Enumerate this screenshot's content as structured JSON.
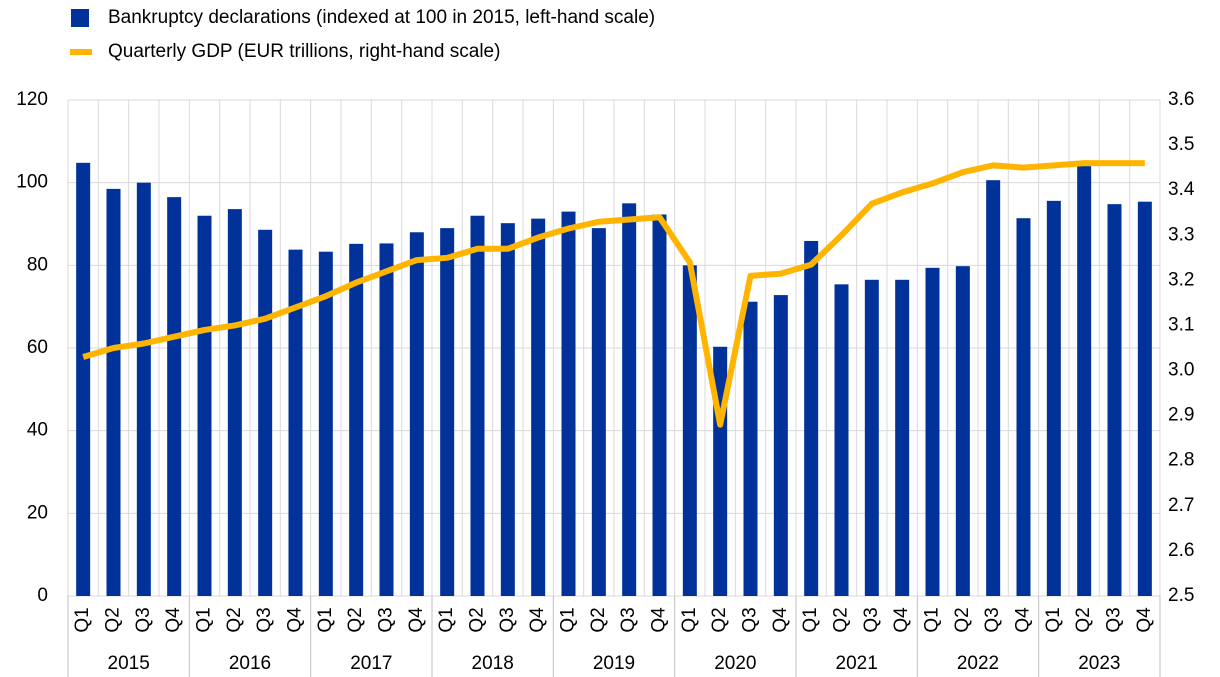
{
  "chart_data": {
    "type": "bar_line",
    "categories": [
      "Q1",
      "Q2",
      "Q3",
      "Q4",
      "Q1",
      "Q2",
      "Q3",
      "Q4",
      "Q1",
      "Q2",
      "Q3",
      "Q4",
      "Q1",
      "Q2",
      "Q3",
      "Q4",
      "Q1",
      "Q2",
      "Q3",
      "Q4",
      "Q1",
      "Q2",
      "Q3",
      "Q4",
      "Q1",
      "Q2",
      "Q3",
      "Q4",
      "Q1",
      "Q2",
      "Q3",
      "Q4",
      "Q1",
      "Q2",
      "Q3",
      "Q4"
    ],
    "years": [
      "2015",
      "2016",
      "2017",
      "2018",
      "2019",
      "2020",
      "2021",
      "2022",
      "2023"
    ],
    "series": [
      {
        "name": "Bankruptcy declarations (indexed at 100 in 2015, left-hand scale)",
        "type": "bar",
        "color": "#003299",
        "values": [
          104.8,
          98.5,
          100,
          96.5,
          92,
          93.6,
          88.6,
          83.8,
          83.3,
          85.2,
          85.3,
          88,
          89,
          92,
          90.2,
          91.3,
          93,
          89,
          95,
          92.3,
          80,
          60.3,
          71.2,
          72.8,
          85.9,
          75.4,
          76.5,
          76.5,
          79.4,
          79.8,
          100.6,
          91.4,
          95.6,
          104,
          94.8,
          95.4
        ]
      },
      {
        "name": "Quarterly GDP (EUR trillions, right-hand scale)",
        "type": "line",
        "axis": "y2",
        "color": "#ffb400",
        "values": [
          3.03,
          3.05,
          3.06,
          3.075,
          3.09,
          3.1,
          3.115,
          3.14,
          3.165,
          3.195,
          3.22,
          3.245,
          3.25,
          3.27,
          3.27,
          3.295,
          3.315,
          3.33,
          3.335,
          3.34,
          3.24,
          2.88,
          3.21,
          3.215,
          3.235,
          3.3,
          3.37,
          3.395,
          3.415,
          3.44,
          3.455,
          3.45,
          3.455,
          3.46,
          3.46,
          3.46
        ]
      }
    ],
    "ylim": [
      0,
      120
    ],
    "yticks": [
      0,
      20,
      40,
      60,
      80,
      100,
      120
    ],
    "y2lim": [
      2.5,
      3.6
    ],
    "y2ticks": [
      2.5,
      2.6,
      2.7,
      2.8,
      2.9,
      {
        "value": 3,
        "label": "3.0"
      },
      3.1,
      3.2,
      3.3,
      3.4,
      3.5,
      3.6
    ],
    "grid": true
  }
}
